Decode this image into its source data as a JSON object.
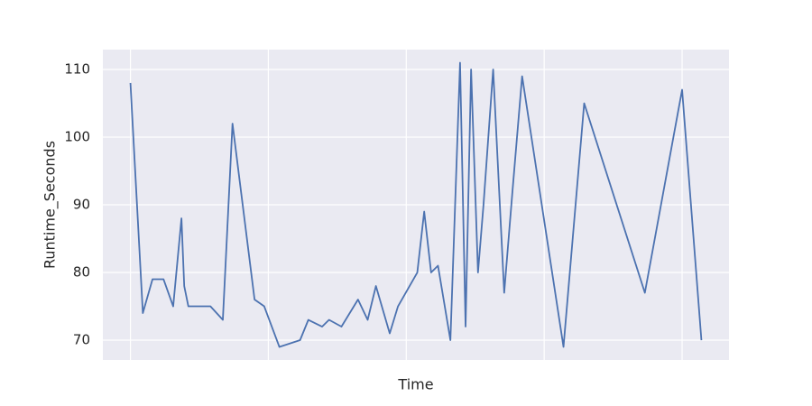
{
  "chart_data": {
    "type": "line",
    "x_label": "Time",
    "y_label": "Runtime_Seconds",
    "x": [
      0,
      0.09,
      0.16,
      0.24,
      0.31,
      0.37,
      0.39,
      0.42,
      0.58,
      0.67,
      0.74,
      0.9,
      0.97,
      1.08,
      1.23,
      1.29,
      1.39,
      1.44,
      1.53,
      1.65,
      1.72,
      1.78,
      1.88,
      1.94,
      2.08,
      2.13,
      2.18,
      2.23,
      2.32,
      2.39,
      2.43,
      2.47,
      2.52,
      2.56,
      2.63,
      2.71,
      2.77,
      2.84,
      3.14,
      3.29,
      3.73,
      4.0,
      4.14
    ],
    "series": [
      {
        "color": "#4c72b0",
        "values": [
          108,
          74,
          79,
          79,
          75,
          88,
          78,
          75,
          75,
          73,
          102,
          76,
          75,
          69,
          70,
          73,
          72,
          73,
          72,
          76,
          73,
          78,
          71,
          75,
          80,
          89,
          80,
          81,
          70,
          111,
          72,
          110,
          80,
          90,
          110,
          77,
          92,
          109,
          69,
          105,
          77,
          107,
          70
        ]
      }
    ],
    "xlim": [
      -0.2,
      4.34
    ],
    "xticks": [
      0,
      1,
      2,
      3,
      4
    ],
    "ylim": [
      67.07,
      112.93
    ],
    "yticks": [
      70,
      80,
      90,
      100,
      110
    ],
    "grid": true,
    "background": "#eaeaf2"
  }
}
